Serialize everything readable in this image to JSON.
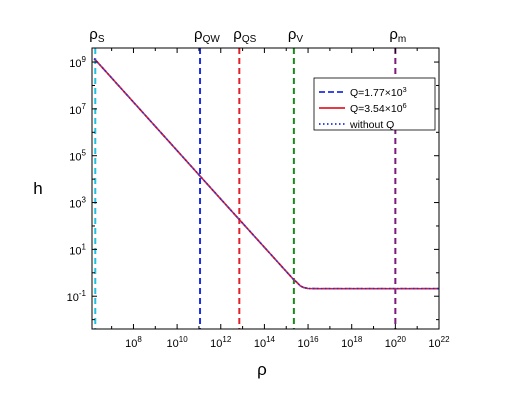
{
  "chart_data": {
    "type": "line",
    "xlabel": "ρ",
    "ylabel": "h",
    "x_scale": "log",
    "y_scale": "log",
    "xlim_exponent": [
      6.1,
      22
    ],
    "ylim_exponent": [
      -2.4,
      9.6
    ],
    "x_tick_exponents": [
      8,
      10,
      12,
      14,
      16,
      18,
      20,
      22
    ],
    "y_tick_exponents": [
      -1,
      1,
      3,
      5,
      7,
      9
    ],
    "x_tick_labels": [
      "10^8",
      "10^10",
      "10^12",
      "10^14",
      "10^16",
      "10^18",
      "10^20",
      "10^22"
    ],
    "y_tick_labels": [
      "10^-1",
      "10^1",
      "10^3",
      "10^5",
      "10^7",
      "10^9"
    ],
    "series": [
      {
        "name": "Q=1.77×10^3",
        "style": "dashed",
        "color": "#1f2fe0",
        "log_x": [
          6.2,
          12,
          15.3,
          15.5,
          15.65,
          15.8,
          16.0,
          16.5,
          22
        ],
        "log_y": [
          9.15,
          3.15,
          -0.25,
          -0.42,
          -0.56,
          -0.63,
          -0.67,
          -0.68,
          -0.68
        ]
      },
      {
        "name": "Q=3.54×10^6",
        "style": "solid",
        "color": "#e0202a",
        "log_x": [
          6.2,
          12,
          15.3,
          15.5,
          15.65,
          15.8,
          16.0,
          16.5,
          22
        ],
        "log_y": [
          9.15,
          3.15,
          -0.25,
          -0.42,
          -0.56,
          -0.63,
          -0.67,
          -0.68,
          -0.68
        ]
      },
      {
        "name": "without Q",
        "style": "dotted",
        "color": "#1f2fe0",
        "log_x": [
          6.2,
          12,
          15.3,
          15.5,
          15.65,
          15.8,
          16.0,
          16.5,
          22
        ],
        "log_y": [
          9.15,
          3.15,
          -0.25,
          -0.42,
          -0.56,
          -0.63,
          -0.67,
          -0.68,
          -0.68
        ]
      }
    ],
    "vertical_markers": [
      {
        "label_base": "ρ",
        "label_sub": "S",
        "log_x": 6.25,
        "color": "#22c0e0"
      },
      {
        "label_base": "ρ",
        "label_sub": "QW",
        "log_x": 11.05,
        "color": "#1f2fe0"
      },
      {
        "label_base": "ρ",
        "label_sub": "QS",
        "log_x": 12.85,
        "color": "#e0202a"
      },
      {
        "label_base": "ρ",
        "label_sub": "V",
        "log_x": 15.35,
        "color": "#1a8a1a"
      },
      {
        "label_base": "ρ",
        "label_sub": "m",
        "log_x": 20.0,
        "color": "#7a1a7a"
      }
    ],
    "legend": {
      "placement": "top-right",
      "entries": [
        {
          "base": "Q=1.77×10",
          "sup": "3"
        },
        {
          "base": "Q=3.54×10",
          "sup": "6"
        },
        {
          "base": "without Q",
          "sup": ""
        }
      ]
    }
  }
}
